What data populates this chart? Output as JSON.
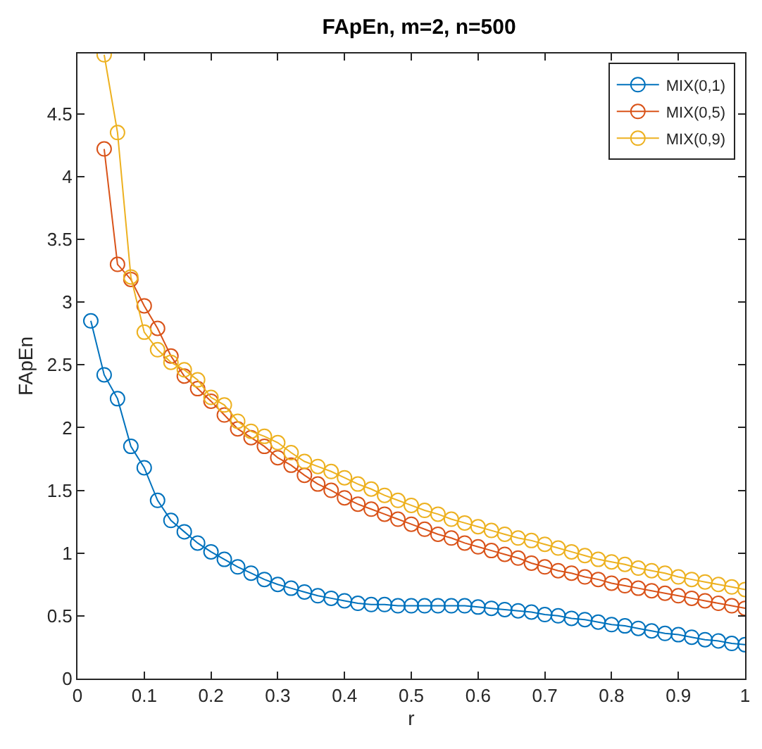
{
  "chart_data": {
    "type": "line",
    "title": "FApEn, m=2, n=500",
    "xlabel": "r",
    "ylabel": "FApEn",
    "x": [
      0.02,
      0.04,
      0.06,
      0.08,
      0.1,
      0.12,
      0.14,
      0.16,
      0.18,
      0.2,
      0.22,
      0.24,
      0.26,
      0.28,
      0.3,
      0.32,
      0.34,
      0.36,
      0.38,
      0.4,
      0.42,
      0.44,
      0.46,
      0.48,
      0.5,
      0.52,
      0.54,
      0.56,
      0.58,
      0.6,
      0.62,
      0.64,
      0.66,
      0.68,
      0.7,
      0.72,
      0.74,
      0.76,
      0.78,
      0.8,
      0.82,
      0.84,
      0.86,
      0.88,
      0.9,
      0.92,
      0.94,
      0.96,
      0.98,
      1.0
    ],
    "series": [
      {
        "name": "MIX(0,1)",
        "color": "#0072bd",
        "values": [
          2.85,
          2.42,
          2.23,
          1.85,
          1.68,
          1.42,
          1.26,
          1.17,
          1.08,
          1.01,
          0.95,
          0.89,
          0.84,
          0.79,
          0.75,
          0.72,
          0.69,
          0.66,
          0.64,
          0.62,
          0.6,
          0.59,
          0.59,
          0.58,
          0.58,
          0.58,
          0.58,
          0.58,
          0.58,
          0.57,
          0.56,
          0.55,
          0.54,
          0.53,
          0.51,
          0.5,
          0.48,
          0.47,
          0.45,
          0.43,
          0.42,
          0.4,
          0.38,
          0.36,
          0.35,
          0.33,
          0.31,
          0.3,
          0.28,
          0.27
        ]
      },
      {
        "name": "MIX(0,5)",
        "color": "#d95319",
        "values": [
          null,
          4.22,
          3.3,
          3.18,
          2.97,
          2.79,
          2.57,
          2.41,
          2.31,
          2.21,
          2.1,
          1.99,
          1.92,
          1.85,
          1.76,
          1.7,
          1.62,
          1.55,
          1.5,
          1.44,
          1.39,
          1.35,
          1.31,
          1.27,
          1.23,
          1.19,
          1.15,
          1.12,
          1.08,
          1.05,
          1.02,
          0.99,
          0.96,
          0.92,
          0.89,
          0.86,
          0.84,
          0.81,
          0.79,
          0.76,
          0.74,
          0.72,
          0.7,
          0.68,
          0.66,
          0.64,
          0.62,
          0.6,
          0.58,
          0.56
        ]
      },
      {
        "name": "MIX(0,9)",
        "color": "#edb120",
        "values": [
          null,
          4.97,
          4.35,
          3.2,
          2.76,
          2.62,
          2.52,
          2.46,
          2.38,
          2.24,
          2.18,
          2.05,
          1.97,
          1.93,
          1.88,
          1.8,
          1.73,
          1.69,
          1.65,
          1.6,
          1.55,
          1.51,
          1.46,
          1.42,
          1.38,
          1.34,
          1.31,
          1.27,
          1.24,
          1.21,
          1.18,
          1.15,
          1.12,
          1.1,
          1.07,
          1.04,
          1.01,
          0.98,
          0.95,
          0.93,
          0.91,
          0.88,
          0.86,
          0.84,
          0.81,
          0.79,
          0.77,
          0.75,
          0.73,
          0.71
        ]
      }
    ],
    "xlim": [
      0,
      1
    ],
    "xticks": [
      0,
      0.1,
      0.2,
      0.3,
      0.4,
      0.5,
      0.6,
      0.7,
      0.8,
      0.9,
      1
    ],
    "ylim": [
      0,
      4.98
    ],
    "yticks": [
      0,
      0.5,
      1,
      1.5,
      2,
      2.5,
      3,
      3.5,
      4,
      4.5
    ],
    "legend": "top right",
    "marker": "circle",
    "line_style": "solid"
  }
}
